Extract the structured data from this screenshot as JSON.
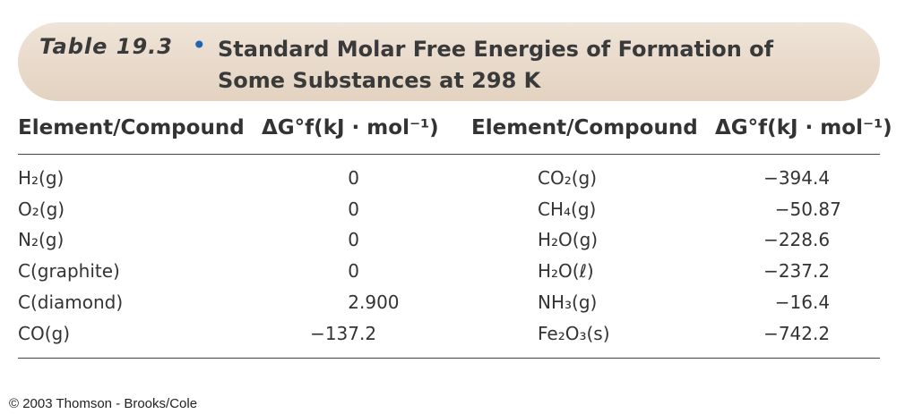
{
  "header": {
    "table_label": "Table 19.3",
    "bullet": "•",
    "title": "Standard Molar Free Energies of Formation of Some Substances at 298 K"
  },
  "table": {
    "columns": [
      "Element/Compound",
      "ΔG°f(kJ · mol⁻¹)",
      "Element/Compound",
      "ΔG°f(kJ · mol⁻¹)"
    ],
    "rows": [
      [
        "H₂(g)",
        "0",
        "CO₂(g)",
        "−394.4"
      ],
      [
        "O₂(g)",
        "0",
        "CH₄(g)",
        "−50.87"
      ],
      [
        "N₂(g)",
        "0",
        "H₂O(g)",
        "−228.6"
      ],
      [
        "C(graphite)",
        "0",
        "H₂O(ℓ)",
        "−237.2"
      ],
      [
        "C(diamond)",
        "2.900",
        "NH₃(g)",
        "−16.4"
      ],
      [
        "CO(g)",
        "−137.2",
        "Fe₂O₃(s)",
        "−742.2"
      ]
    ]
  },
  "footer": {
    "copyright": "© 2003 Thomson - Brooks/Cole"
  }
}
